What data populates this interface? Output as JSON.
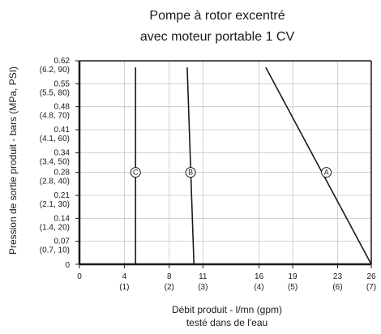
{
  "chart_data": {
    "type": "line",
    "title": [
      "Pompe à rotor excentré",
      "avec moteur portable 1 CV"
    ],
    "xlabel": [
      "Débit produit - l/mn (gpm)",
      "testé dans de l'eau"
    ],
    "ylabel": "Pression de sortie produit - bars (MPa, PSI)",
    "xlim": [
      0,
      26
    ],
    "ylim": [
      0,
      0.62
    ],
    "x_ticks": [
      {
        "value": 0,
        "label": "0",
        "sub": ""
      },
      {
        "value": 4,
        "label": "4",
        "sub": "(1)"
      },
      {
        "value": 8,
        "label": "8",
        "sub": "(2)"
      },
      {
        "value": 11,
        "label": "11",
        "sub": "(3)"
      },
      {
        "value": 16,
        "label": "16",
        "sub": "(4)"
      },
      {
        "value": 19,
        "label": "19",
        "sub": "(5)"
      },
      {
        "value": 23,
        "label": "23",
        "sub": "(6)"
      },
      {
        "value": 26,
        "label": "26",
        "sub": "(7)"
      }
    ],
    "y_ticks": [
      {
        "value": 0,
        "label": "0",
        "sub": ""
      },
      {
        "value": 0.07,
        "label": "0.07",
        "sub": "(0.7, 10)"
      },
      {
        "value": 0.14,
        "label": "0.14",
        "sub": "(1.4, 20)"
      },
      {
        "value": 0.21,
        "label": "0.21",
        "sub": "(2.1, 30)"
      },
      {
        "value": 0.28,
        "label": "0.28",
        "sub": "(2.8, 40)"
      },
      {
        "value": 0.34,
        "label": "0.34",
        "sub": "(3.4, 50)"
      },
      {
        "value": 0.41,
        "label": "0.41",
        "sub": "(4.1, 60)"
      },
      {
        "value": 0.48,
        "label": "0.48",
        "sub": "(4.8, 70)"
      },
      {
        "value": 0.55,
        "label": "0.55",
        "sub": "(5.5, 80)"
      },
      {
        "value": 0.62,
        "label": "0.62",
        "sub": "(6.2, 90)"
      }
    ],
    "grid": true,
    "series": [
      {
        "name": "A",
        "x": [
          16.6,
          26.0
        ],
        "y": [
          0.6,
          0.0
        ],
        "label_at": [
          22.0,
          0.28
        ]
      },
      {
        "name": "B",
        "x": [
          9.6,
          10.2
        ],
        "y": [
          0.6,
          0.0
        ],
        "label_at": [
          9.9,
          0.28
        ]
      },
      {
        "name": "C",
        "x": [
          5.0,
          5.0
        ],
        "y": [
          0.6,
          0.0
        ],
        "label_at": [
          5.0,
          0.28
        ]
      }
    ]
  }
}
